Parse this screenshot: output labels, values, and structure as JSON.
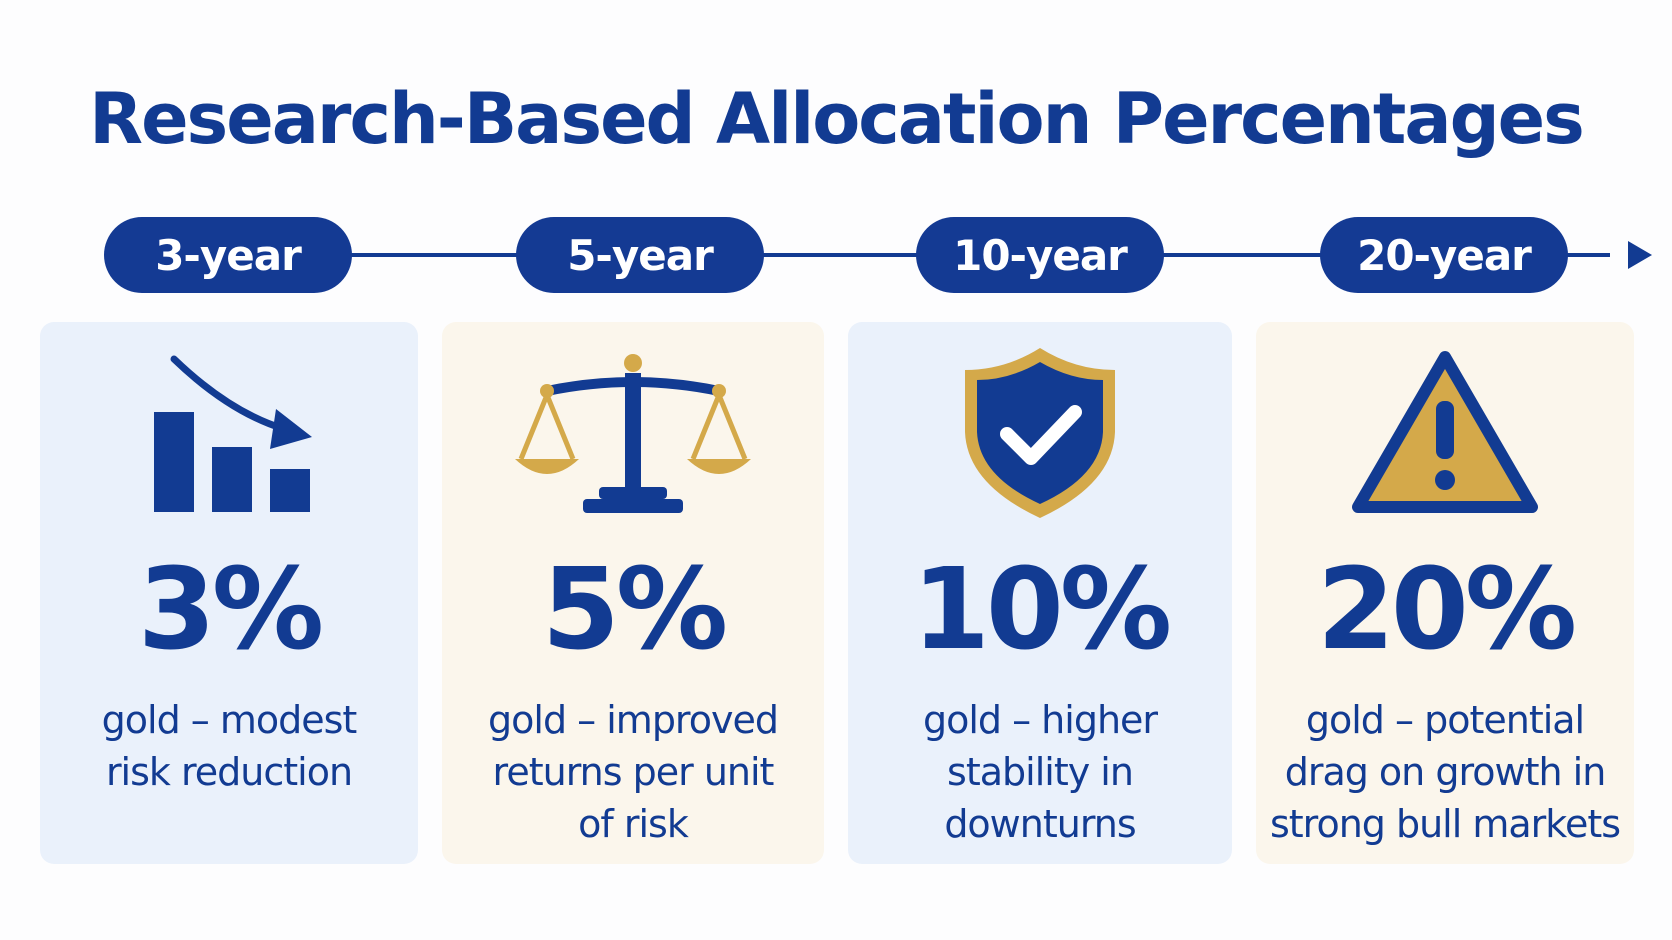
{
  "title": "Research-Based Allocation Percentages",
  "colors": {
    "navy": "#123b92",
    "gold": "#d4a94a",
    "card_blue": "#eaf1fb",
    "card_cream": "#fbf6ec"
  },
  "timeline": [
    {
      "label": "3-year"
    },
    {
      "label": "5-year"
    },
    {
      "label": "10-year"
    },
    {
      "label": "20-year"
    }
  ],
  "cards": [
    {
      "icon": "declining-bar-chart-icon",
      "percent": "3%",
      "line1": "gold – modest",
      "line2": "risk reduction",
      "line3": ""
    },
    {
      "icon": "balance-scale-icon",
      "percent": "5%",
      "line1": "gold – improved",
      "line2": "returns per unit",
      "line3": "of risk"
    },
    {
      "icon": "shield-check-icon",
      "percent": "10%",
      "line1": "gold – higher",
      "line2": "stability in",
      "line3": "downturns"
    },
    {
      "icon": "warning-triangle-icon",
      "percent": "20%",
      "line1": "gold – potential",
      "line2": "drag on growth in",
      "line3": "strong bull markets"
    }
  ]
}
